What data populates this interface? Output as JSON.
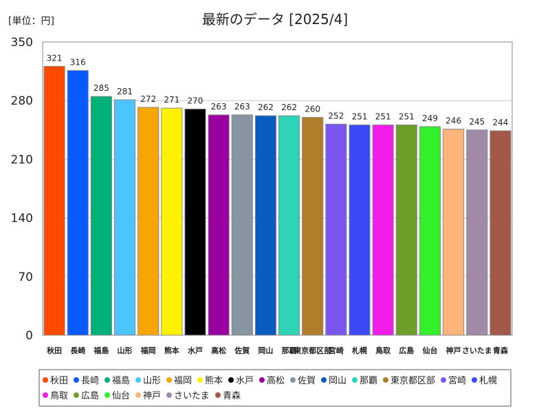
{
  "chart_data": {
    "type": "bar",
    "title": "最新のデータ [2025/4]",
    "unit_label": "[単位：円]",
    "xlabel": "",
    "ylabel": "",
    "ylim": [
      0,
      350
    ],
    "yticks": [
      0,
      70,
      140,
      210,
      280,
      350
    ],
    "grid": true,
    "legend_position": "bottom",
    "categories": [
      "秋田",
      "長崎",
      "福島",
      "山形",
      "福岡",
      "熊本",
      "水戸",
      "高松",
      "佐賀",
      "岡山",
      "那覇",
      "東京都区部",
      "宮崎",
      "札幌",
      "鳥取",
      "広島",
      "仙台",
      "神戸",
      "さいたま",
      "青森"
    ],
    "values": [
      321,
      316,
      285,
      281,
      272,
      271,
      270,
      263,
      263,
      262,
      262,
      260,
      252,
      251,
      251,
      251,
      249,
      246,
      245,
      244
    ],
    "colors": [
      "#FF4A00",
      "#0A5BFF",
      "#00B07A",
      "#4DC4FF",
      "#F7A600",
      "#FFF200",
      "#000000",
      "#9A00A0",
      "#8595A2",
      "#0A5BC0",
      "#2FD4B8",
      "#B07D2A",
      "#7B55F0",
      "#3B4AF5",
      "#F01EE8",
      "#6E9E2A",
      "#33F02A",
      "#FFB47A",
      "#A08AA8",
      "#A4584A"
    ]
  }
}
